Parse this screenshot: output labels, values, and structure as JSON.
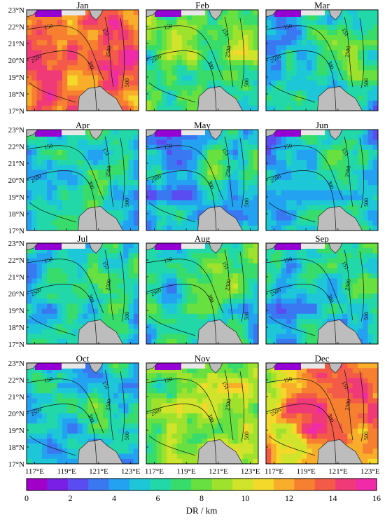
{
  "chart_data": {
    "type": "heatmap",
    "panels": [
      {
        "month": "Jan",
        "level": 0.8,
        "hotspot": 0.95
      },
      {
        "month": "Feb",
        "level": 0.45,
        "hotspot": 0.55
      },
      {
        "month": "Mar",
        "level": 0.33,
        "hotspot": 0.45
      },
      {
        "month": "Apr",
        "level": 0.32,
        "hotspot": 0.42
      },
      {
        "month": "May",
        "level": 0.3,
        "hotspot": 0.4
      },
      {
        "month": "Jun",
        "level": 0.31,
        "hotspot": 0.42
      },
      {
        "month": "Jul",
        "level": 0.31,
        "hotspot": 0.42
      },
      {
        "month": "Aug",
        "level": 0.36,
        "hotspot": 0.48
      },
      {
        "month": "Sep",
        "level": 0.32,
        "hotspot": 0.42
      },
      {
        "month": "Oct",
        "level": 0.3,
        "hotspot": 0.4
      },
      {
        "month": "Nov",
        "level": 0.5,
        "hotspot": 0.65
      },
      {
        "month": "Dec",
        "level": 0.7,
        "hotspot": 0.95
      }
    ],
    "lat_ticks": [
      "17°N",
      "18°N",
      "19°N",
      "20°N",
      "21°N",
      "22°N",
      "23°N"
    ],
    "lon_ticks": [
      "117°E",
      "119°E",
      "121°E",
      "123°E"
    ],
    "xlim": [
      116.5,
      123.5
    ],
    "ylim": [
      17,
      23
    ],
    "contour_labels": [
      "150",
      "2500",
      "300",
      "500",
      "151",
      "2500"
    ],
    "colorbar": {
      "label": "DR  /  km",
      "ticks": [
        "0",
        "2",
        "4",
        "6",
        "8",
        "10",
        "12",
        "14",
        "16"
      ],
      "range": [
        0,
        16
      ],
      "colors": [
        "#a000c8",
        "#7a20e6",
        "#5a4cf0",
        "#3a78f2",
        "#24a2f2",
        "#1dc7d8",
        "#22d8a8",
        "#38dc6a",
        "#68e040",
        "#9ee22e",
        "#cfe42a",
        "#f4d82a",
        "#f8ae2a",
        "#f68030",
        "#f45a48",
        "#f03a78",
        "#f02aa8"
      ]
    }
  }
}
